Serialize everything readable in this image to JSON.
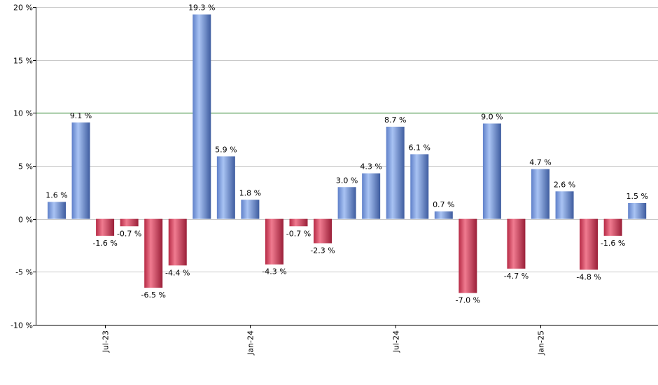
{
  "chart_data": {
    "type": "bar",
    "title": "",
    "xlabel": "",
    "ylabel": "",
    "ylim": [
      -10,
      20
    ],
    "grid": true,
    "legend": "none",
    "reference_line": {
      "value": 10,
      "color": "#1a7a1a"
    },
    "y_ticks": [
      {
        "value": 20,
        "label": "20 %"
      },
      {
        "value": 15,
        "label": "15 %"
      },
      {
        "value": 10,
        "label": "10 %"
      },
      {
        "value": 5,
        "label": "5 %"
      },
      {
        "value": 0,
        "label": "0 %"
      },
      {
        "value": -5,
        "label": "-5 %"
      },
      {
        "value": -10,
        "label": "-10 %"
      }
    ],
    "x_ticks": [
      {
        "index": 2,
        "label": "Jul-23"
      },
      {
        "index": 8,
        "label": "Jan-24"
      },
      {
        "index": 14,
        "label": "Jul-24"
      },
      {
        "index": 20,
        "label": "Jan-25"
      }
    ],
    "values": [
      1.6,
      9.1,
      -1.6,
      -0.7,
      -6.5,
      -4.4,
      19.3,
      5.9,
      1.8,
      -4.3,
      -0.7,
      -2.3,
      3.0,
      4.3,
      8.7,
      6.1,
      0.7,
      -7.0,
      9.0,
      -4.7,
      4.7,
      2.6,
      -4.8,
      -1.6,
      1.5
    ],
    "value_labels": [
      "1.6 %",
      "9.1 %",
      "-1.6 %",
      "-0.7 %",
      "-6.5 %",
      "-4.4 %",
      "19.3 %",
      "5.9 %",
      "1.8 %",
      "-4.3 %",
      "-0.7 %",
      "-2.3 %",
      "3.0 %",
      "4.3 %",
      "8.7 %",
      "6.1 %",
      "0.7 %",
      "-7.0 %",
      "9.0 %",
      "-4.7 %",
      "4.7 %",
      "2.6 %",
      "-4.8 %",
      "-1.6 %",
      "1.5 %"
    ],
    "colors": {
      "positive": "#6f93de",
      "negative": "#cf3350",
      "grid": "#c8c8c8",
      "axis": "#000000"
    }
  }
}
